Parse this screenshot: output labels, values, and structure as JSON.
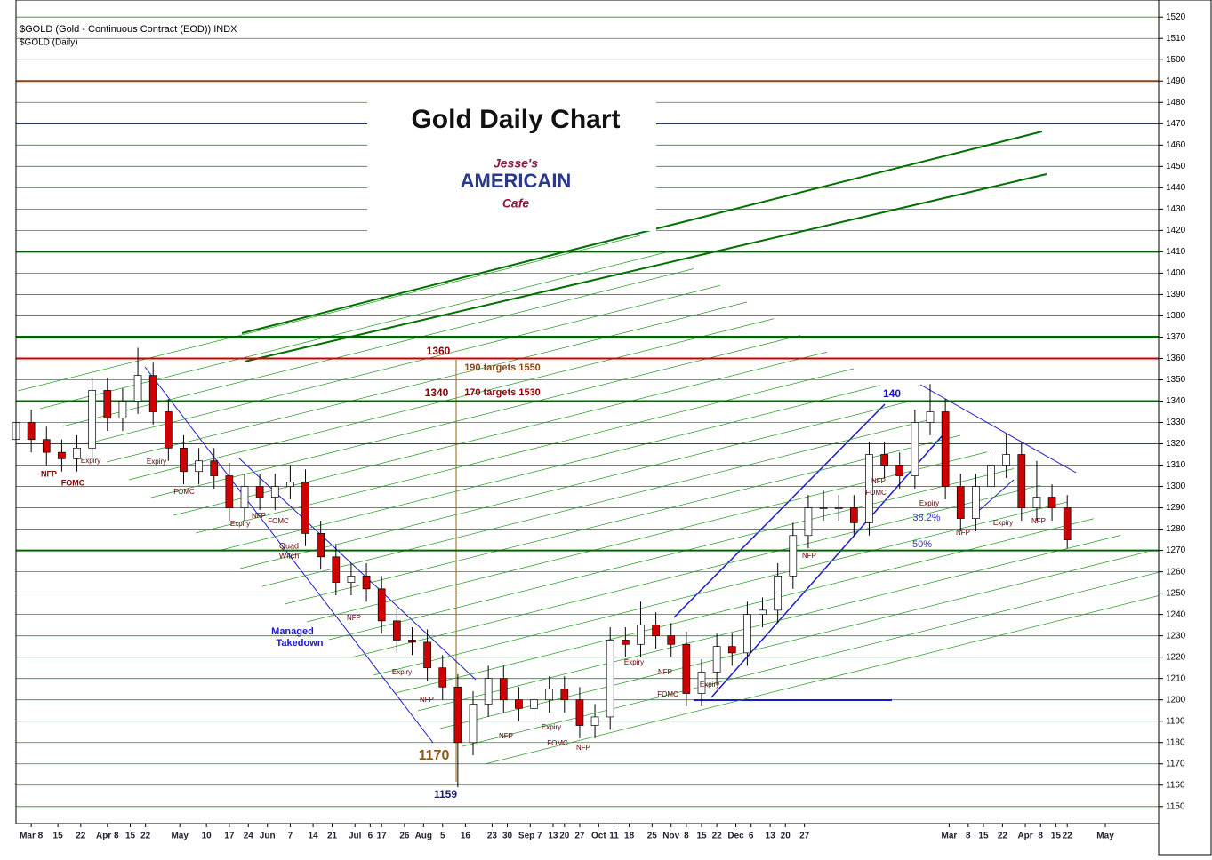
{
  "chart_data": {
    "type": "candlestick",
    "title": "Gold Daily Chart",
    "header": "$GOLD (Gold - Continuous Contract (EOD)) INDX",
    "subheader": "$GOLD (Daily)",
    "logo": [
      "Jesse's",
      "AMERICAIN",
      "Cafe"
    ],
    "x": [
      0,
      4,
      8,
      12,
      16,
      20,
      24,
      28,
      32,
      36,
      40,
      44,
      48,
      52,
      56,
      60,
      64,
      68,
      72,
      76,
      80,
      84,
      88,
      92,
      96,
      100,
      104,
      108,
      112,
      116,
      120,
      124,
      128,
      132,
      136,
      140,
      144,
      148,
      152,
      156,
      160,
      164,
      168,
      172,
      176,
      180,
      184,
      188,
      192,
      196,
      200,
      204,
      208,
      212,
      216,
      220,
      224,
      228,
      232,
      236,
      240,
      244,
      248,
      252,
      256,
      260,
      264,
      268,
      272,
      276
    ],
    "open": [
      1322,
      1330,
      1322,
      1316,
      1313,
      1318,
      1345,
      1332,
      1340,
      1352,
      1335,
      1318,
      1307,
      1312,
      1305,
      1290,
      1300,
      1295,
      1300,
      1302,
      1278,
      1267,
      1255,
      1258,
      1252,
      1237,
      1228,
      1227,
      1215,
      1206,
      1180,
      1198,
      1210,
      1200,
      1196,
      1200,
      1205,
      1200,
      1188,
      1192,
      1228,
      1226,
      1235,
      1230,
      1226,
      1203,
      1213,
      1225,
      1222,
      1240,
      1242,
      1258,
      1277,
      1290,
      1290,
      1290,
      1283,
      1315,
      1310,
      1305,
      1330,
      1335,
      1300,
      1285,
      1300,
      1310,
      1315,
      1290,
      1295,
      1290
    ],
    "high": [
      1336,
      1336,
      1328,
      1322,
      1324,
      1351,
      1351,
      1346,
      1365,
      1358,
      1341,
      1324,
      1318,
      1318,
      1311,
      1306,
      1306,
      1306,
      1310,
      1308,
      1284,
      1273,
      1264,
      1264,
      1258,
      1243,
      1234,
      1233,
      1221,
      1212,
      1204,
      1216,
      1216,
      1206,
      1206,
      1211,
      1211,
      1206,
      1198,
      1234,
      1234,
      1246,
      1241,
      1236,
      1232,
      1219,
      1231,
      1231,
      1246,
      1248,
      1264,
      1283,
      1296,
      1298,
      1296,
      1296,
      1321,
      1321,
      1316,
      1336,
      1348,
      1341,
      1306,
      1306,
      1316,
      1325,
      1321,
      1312,
      1301,
      1296
    ],
    "low": [
      1316,
      1316,
      1310,
      1307,
      1307,
      1312,
      1326,
      1326,
      1334,
      1329,
      1312,
      1301,
      1301,
      1299,
      1284,
      1284,
      1289,
      1289,
      1294,
      1272,
      1261,
      1249,
      1249,
      1246,
      1231,
      1222,
      1221,
      1209,
      1200,
      1159,
      1174,
      1192,
      1194,
      1190,
      1190,
      1194,
      1194,
      1182,
      1182,
      1186,
      1220,
      1220,
      1224,
      1220,
      1197,
      1197,
      1207,
      1216,
      1216,
      1234,
      1236,
      1252,
      1271,
      1284,
      1284,
      1277,
      1277,
      1304,
      1299,
      1299,
      1324,
      1294,
      1279,
      1279,
      1294,
      1304,
      1284,
      1284,
      1284,
      1271
    ],
    "close": [
      1330,
      1322,
      1316,
      1313,
      1318,
      1345,
      1332,
      1340,
      1352,
      1335,
      1318,
      1307,
      1312,
      1305,
      1290,
      1300,
      1295,
      1300,
      1302,
      1278,
      1267,
      1255,
      1258,
      1252,
      1237,
      1228,
      1227,
      1215,
      1206,
      1180,
      1198,
      1210,
      1200,
      1196,
      1200,
      1205,
      1200,
      1188,
      1192,
      1228,
      1226,
      1235,
      1230,
      1226,
      1203,
      1213,
      1225,
      1222,
      1240,
      1242,
      1258,
      1277,
      1290,
      1290,
      1290,
      1283,
      1315,
      1310,
      1305,
      1330,
      1335,
      1300,
      1285,
      1300,
      1310,
      1315,
      1290,
      1295,
      1290,
      1275
    ],
    "up_color": "#ffffff",
    "down_color": "#d00000",
    "xlim": [
      0,
      300
    ],
    "xticks": [
      {
        "value": 4,
        "label": "Mar 8"
      },
      {
        "value": 11,
        "label": "15"
      },
      {
        "value": 17,
        "label": "22"
      },
      {
        "value": 24,
        "label": "Apr 8"
      },
      {
        "value": 30,
        "label": "15"
      },
      {
        "value": 34,
        "label": "22"
      },
      {
        "value": 43,
        "label": "May"
      },
      {
        "value": 50,
        "label": "10"
      },
      {
        "value": 56,
        "label": "17"
      },
      {
        "value": 61,
        "label": "24"
      },
      {
        "value": 66,
        "label": "Jun"
      },
      {
        "value": 72,
        "label": "7"
      },
      {
        "value": 78,
        "label": "14"
      },
      {
        "value": 83,
        "label": "21"
      },
      {
        "value": 89,
        "label": "Jul"
      },
      {
        "value": 93,
        "label": "6"
      },
      {
        "value": 96,
        "label": "17"
      },
      {
        "value": 102,
        "label": "26"
      },
      {
        "value": 107,
        "label": "Aug"
      },
      {
        "value": 112,
        "label": "5"
      },
      {
        "value": 118,
        "label": "16"
      },
      {
        "value": 125,
        "label": "23"
      },
      {
        "value": 129,
        "label": "30"
      },
      {
        "value": 135,
        "label": "Sep 7"
      },
      {
        "value": 141,
        "label": "13"
      },
      {
        "value": 144,
        "label": "20"
      },
      {
        "value": 148,
        "label": "27"
      },
      {
        "value": 153,
        "label": "Oct"
      },
      {
        "value": 157,
        "label": "11"
      },
      {
        "value": 161,
        "label": "18"
      },
      {
        "value": 167,
        "label": "25"
      },
      {
        "value": 172,
        "label": "Nov"
      },
      {
        "value": 176,
        "label": "8"
      },
      {
        "value": 180,
        "label": "15"
      },
      {
        "value": 184,
        "label": "22"
      },
      {
        "value": 189,
        "label": "Dec"
      },
      {
        "value": 193,
        "label": "6"
      },
      {
        "value": 198,
        "label": "13"
      },
      {
        "value": 202,
        "label": "20"
      },
      {
        "value": 207,
        "label": "27"
      },
      {
        "value": 245,
        "label": "Mar"
      },
      {
        "value": 250,
        "label": "8"
      },
      {
        "value": 254,
        "label": "15"
      },
      {
        "value": 259,
        "label": "22"
      },
      {
        "value": 265,
        "label": "Apr"
      },
      {
        "value": 269,
        "label": "8"
      },
      {
        "value": 273,
        "label": "15"
      },
      {
        "value": 276,
        "label": "22"
      },
      {
        "value": 286,
        "label": "May"
      }
    ],
    "ylim": [
      1142,
      1528
    ],
    "yticks": [
      1150,
      1160,
      1170,
      1180,
      1190,
      1200,
      1210,
      1220,
      1230,
      1240,
      1250,
      1260,
      1270,
      1280,
      1290,
      1300,
      1310,
      1320,
      1330,
      1340,
      1350,
      1360,
      1370,
      1380,
      1390,
      1400,
      1410,
      1420,
      1430,
      1440,
      1450,
      1460,
      1470,
      1480,
      1490,
      1500,
      1510,
      1520
    ],
    "grid": true,
    "levels": [
      {
        "value": 1490,
        "color": "#8b4513",
        "width": 2
      },
      {
        "value": 1470,
        "color": "#000080",
        "width": 1
      },
      {
        "value": 1410,
        "color": "#006400",
        "width": 2
      },
      {
        "value": 1370,
        "color": "#006400",
        "width": 3
      },
      {
        "value": 1360,
        "color": "#cc0000",
        "width": 2
      },
      {
        "value": 1340,
        "color": "#006400",
        "width": 2
      },
      {
        "value": 1320,
        "color": "#cc0000",
        "width": 1
      },
      {
        "value": 1270,
        "color": "#006400",
        "width": 2
      }
    ],
    "annotations": [
      "NFP",
      "FOMC",
      "Expiry",
      "Expiry",
      "FOMC",
      "Expiry",
      "NFP",
      "FOMC",
      "Quad",
      "Witch",
      "NFP",
      "Managed",
      "Takedown",
      "Expiry",
      "NFP",
      "NFP",
      "Expiry",
      "FOMC",
      "NFP",
      "Expiry",
      "NFP",
      "FOMC",
      "Expiry",
      "NFP",
      "FOMC",
      "NFP",
      "Expiry",
      "NFP",
      "Expiry",
      "NFP",
      "38.2%",
      "50%",
      "1360",
      "1340",
      "190 targets 1550",
      "170 targets 1530",
      "140",
      "1170",
      "1159"
    ]
  }
}
